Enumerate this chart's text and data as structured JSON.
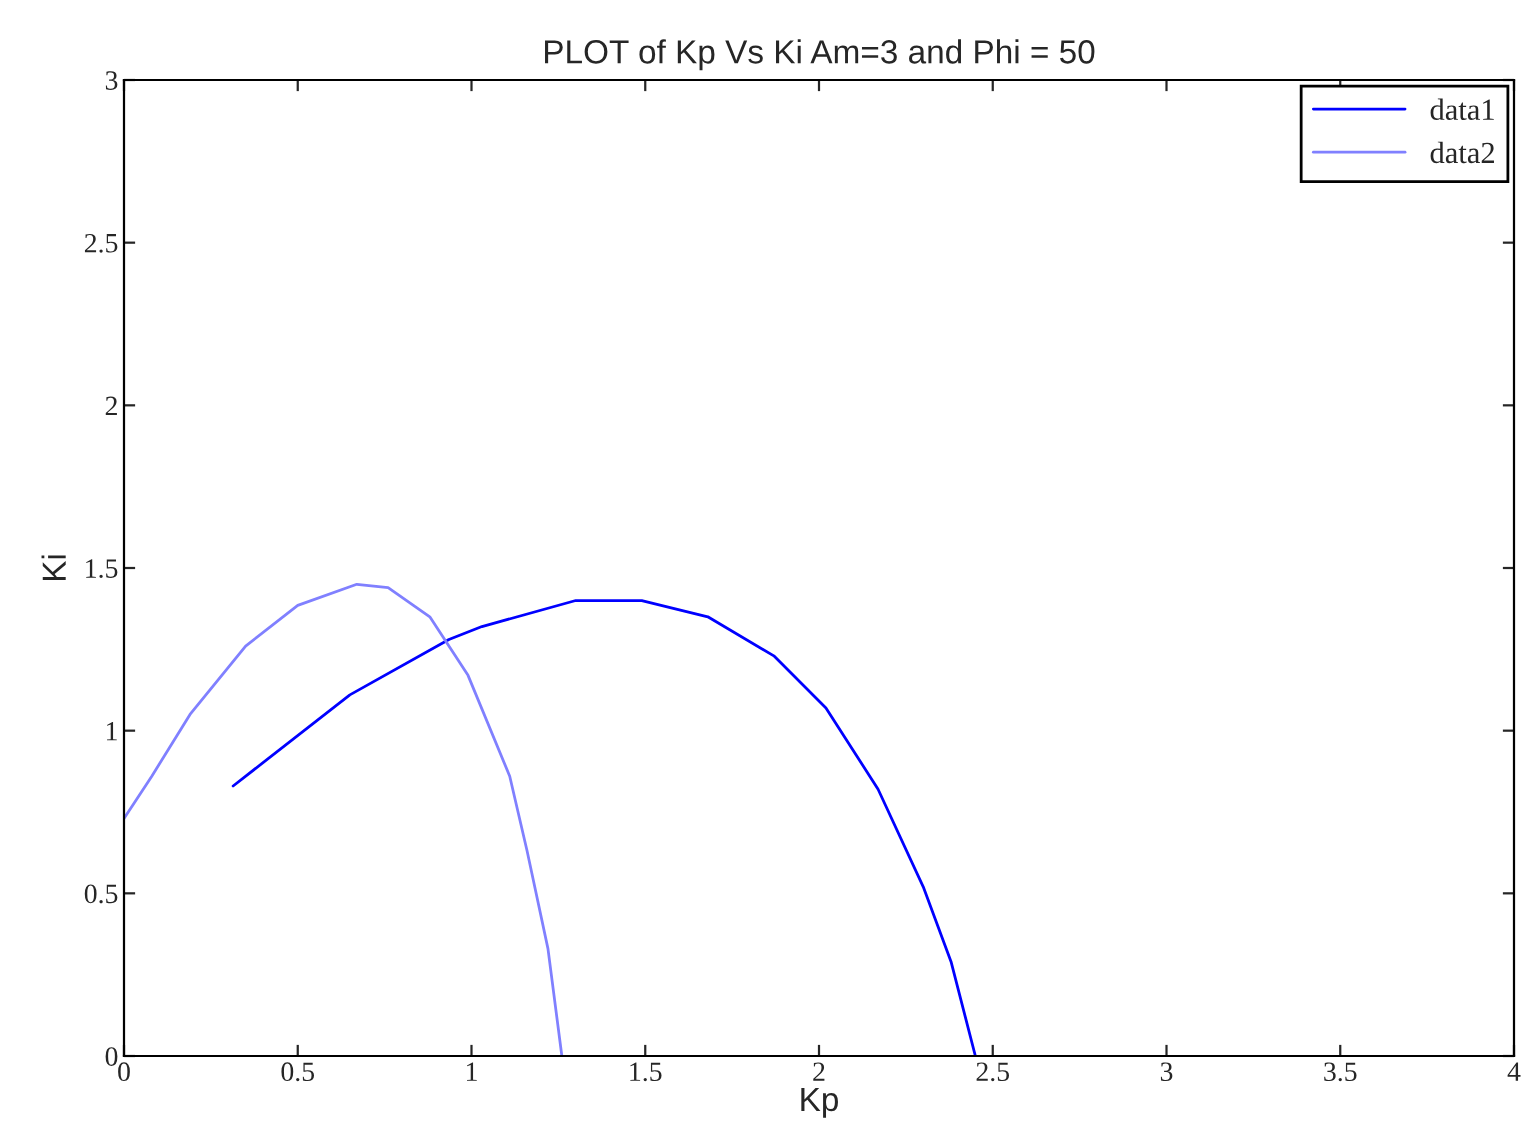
{
  "chart_data": {
    "type": "line",
    "title": "PLOT of Kp Vs Ki Am=3 and Phi = 50",
    "xlabel": "Kp",
    "ylabel": "Ki",
    "xlim": [
      0,
      4
    ],
    "ylim": [
      0,
      3
    ],
    "xticks": [
      0,
      0.5,
      1,
      1.5,
      2,
      2.5,
      3,
      3.5,
      4
    ],
    "yticks": [
      0,
      0.5,
      1,
      1.5,
      2,
      2.5,
      3
    ],
    "grid": false,
    "legend": "top right",
    "series": [
      {
        "name": "data1",
        "color": "#0000ff",
        "x": [
          0.314,
          0.65,
          0.935,
          1.03,
          1.3,
          1.49,
          1.68,
          1.87,
          2.02,
          2.17,
          2.3,
          2.38,
          2.45
        ],
        "values": [
          0.83,
          1.11,
          1.28,
          1.32,
          1.4,
          1.4,
          1.35,
          1.23,
          1.07,
          0.82,
          0.52,
          0.29,
          0
        ]
      },
      {
        "name": "data2",
        "color": "#8080ff",
        "x": [
          0,
          0.08,
          0.19,
          0.35,
          0.5,
          0.67,
          0.76,
          0.88,
          0.99,
          1.11,
          1.16,
          1.22,
          1.26
        ],
        "values": [
          0.73,
          0.86,
          1.05,
          1.26,
          1.385,
          1.45,
          1.44,
          1.35,
          1.17,
          0.86,
          0.63,
          0.33,
          0
        ]
      }
    ]
  }
}
